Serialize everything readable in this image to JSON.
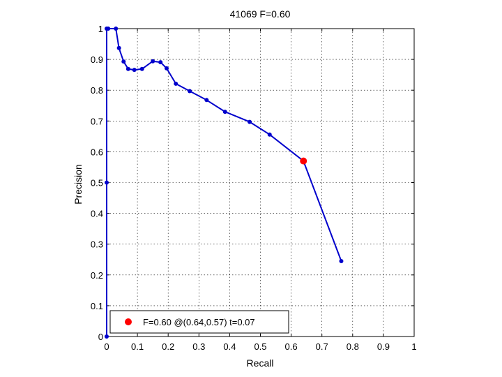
{
  "chart_data": {
    "type": "line",
    "title": "41069 F=0.60",
    "xlabel": "Recall",
    "ylabel": "Precision",
    "xlim": [
      0,
      1
    ],
    "ylim": [
      0,
      1
    ],
    "xticks": [
      0,
      0.1,
      0.2,
      0.3,
      0.4,
      0.5,
      0.6,
      0.7,
      0.8,
      0.9,
      1
    ],
    "yticks": [
      0,
      0.1,
      0.2,
      0.3,
      0.4,
      0.5,
      0.6,
      0.7,
      0.8,
      0.9,
      1
    ],
    "xtick_labels": [
      "0",
      "0.1",
      "0.2",
      "0.3",
      "0.4",
      "0.5",
      "0.6",
      "0.7",
      "0.8",
      "0.9",
      "1"
    ],
    "ytick_labels": [
      "0",
      "0.1",
      "0.2",
      "0.3",
      "0.4",
      "0.5",
      "0.6",
      "0.7",
      "0.8",
      "0.9",
      "1"
    ],
    "grid": true,
    "legend_placement": "bottom-left",
    "series": [
      {
        "color": "#0000cc",
        "x": [
          0,
          0,
          0,
          0.005,
          0.03,
          0.04,
          0.055,
          0.07,
          0.09,
          0.115,
          0.15,
          0.175,
          0.195,
          0.225,
          0.27,
          0.325,
          0.385,
          0.465,
          0.53,
          0.64,
          0.763
        ],
        "y": [
          0,
          0.5,
          1,
          1,
          1,
          0.937,
          0.893,
          0.869,
          0.866,
          0.869,
          0.894,
          0.891,
          0.871,
          0.821,
          0.797,
          0.768,
          0.73,
          0.697,
          0.656,
          0.57,
          0.245
        ]
      }
    ],
    "highlight": {
      "x": 0.64,
      "y": 0.57,
      "color": "#ff0000",
      "legend_label": "F=0.60 @(0.64,0.57) t=0.07"
    }
  }
}
